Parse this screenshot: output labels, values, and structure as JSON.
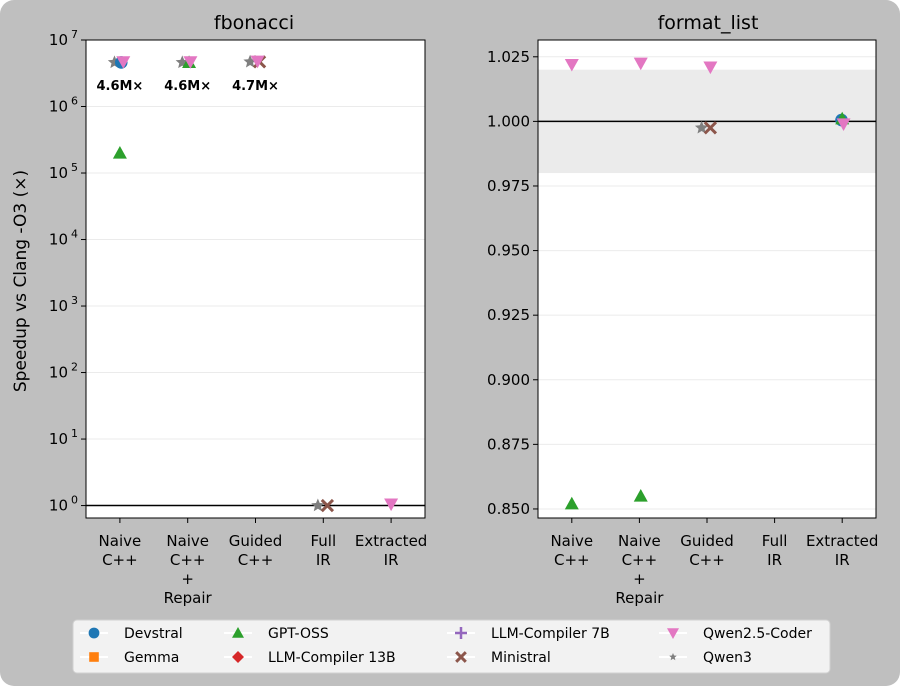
{
  "colors": {
    "figure_bg": "#bfbfbf",
    "axes_bg": "#ffffff",
    "band": "#ebebeb",
    "grid": "#ebebeb",
    "refline": "#000000"
  },
  "legend": {
    "placement": "bottom-center",
    "entries": [
      {
        "label": "Devstral",
        "marker": "circle",
        "color": "#1f77b4"
      },
      {
        "label": "GPT-OSS",
        "marker": "triangle-up",
        "color": "#2ca02c"
      },
      {
        "label": "LLM-Compiler 7B",
        "marker": "plus",
        "color": "#9467bd"
      },
      {
        "label": "Qwen2.5-Coder",
        "marker": "triangle-down",
        "color": "#e377c2"
      },
      {
        "label": "Gemma",
        "marker": "square",
        "color": "#ff7f0e"
      },
      {
        "label": "LLM-Compiler 13B",
        "marker": "diamond",
        "color": "#d62728"
      },
      {
        "label": "Ministral",
        "marker": "x",
        "color": "#8c564b"
      },
      {
        "label": "Qwen3",
        "marker": "star",
        "color": "#7f7f7f"
      }
    ]
  },
  "chart_data": [
    {
      "type": "scatter",
      "title": "fbonacci",
      "ylabel": "Speedup vs Clang -O3 (×)",
      "yscale": "log",
      "ylim": [
        0.65,
        10000000
      ],
      "yticks": [
        {
          "value": 1,
          "base": "10",
          "exp": "0"
        },
        {
          "value": 10,
          "base": "10",
          "exp": "1"
        },
        {
          "value": 100,
          "base": "10",
          "exp": "2"
        },
        {
          "value": 1000,
          "base": "10",
          "exp": "3"
        },
        {
          "value": 10000,
          "base": "10",
          "exp": "4"
        },
        {
          "value": 100000,
          "base": "10",
          "exp": "5"
        },
        {
          "value": 1000000,
          "base": "10",
          "exp": "6"
        },
        {
          "value": 10000000,
          "base": "10",
          "exp": "7"
        }
      ],
      "categories": [
        [
          "Naive",
          "C++"
        ],
        [
          "Naive",
          "C++",
          "+",
          "Repair"
        ],
        [
          "Guided",
          "C++"
        ],
        [
          "Full",
          "IR"
        ],
        [
          "Extracted",
          "IR"
        ]
      ],
      "reference_line": 1,
      "grid": true,
      "points": [
        {
          "series": "Qwen3",
          "cat": 0,
          "offset": -0.08,
          "y": 4600000
        },
        {
          "series": "Devstral",
          "cat": 0,
          "offset": 0.02,
          "y": 4600000
        },
        {
          "series": "Qwen2.5-Coder",
          "cat": 0,
          "offset": 0.05,
          "y": 4700000
        },
        {
          "series": "GPT-OSS",
          "cat": 0,
          "offset": 0.0,
          "y": 200000
        },
        {
          "series": "Qwen3",
          "cat": 1,
          "offset": -0.08,
          "y": 4600000
        },
        {
          "series": "GPT-OSS",
          "cat": 1,
          "offset": 0.02,
          "y": 4600000
        },
        {
          "series": "Qwen2.5-Coder",
          "cat": 1,
          "offset": 0.04,
          "y": 4700000
        },
        {
          "series": "Qwen3",
          "cat": 2,
          "offset": -0.08,
          "y": 4700000
        },
        {
          "series": "Ministral",
          "cat": 2,
          "offset": 0.06,
          "y": 4700000
        },
        {
          "series": "Qwen2.5-Coder",
          "cat": 2,
          "offset": 0.03,
          "y": 4800000
        },
        {
          "series": "Qwen3",
          "cat": 3,
          "offset": -0.08,
          "y": 1
        },
        {
          "series": "Ministral",
          "cat": 3,
          "offset": 0.06,
          "y": 1
        },
        {
          "series": "Qwen2.5-Coder",
          "cat": 4,
          "offset": 0.0,
          "y": 1.05
        }
      ],
      "annotations": [
        {
          "cat": 0,
          "text": "4.6M×"
        },
        {
          "cat": 1,
          "text": "4.6M×"
        },
        {
          "cat": 2,
          "text": "4.7M×"
        }
      ]
    },
    {
      "type": "scatter",
      "title": "format_list",
      "ylabel": "",
      "yscale": "linear",
      "ylim": [
        0.8465,
        1.0315
      ],
      "yticks": [
        {
          "value": 0.85,
          "label": "0.850"
        },
        {
          "value": 0.875,
          "label": "0.875"
        },
        {
          "value": 0.9,
          "label": "0.900"
        },
        {
          "value": 0.925,
          "label": "0.925"
        },
        {
          "value": 0.95,
          "label": "0.950"
        },
        {
          "value": 0.975,
          "label": "0.975"
        },
        {
          "value": 1.0,
          "label": "1.000"
        },
        {
          "value": 1.025,
          "label": "1.025"
        }
      ],
      "categories": [
        [
          "Naive",
          "C++"
        ],
        [
          "Naive",
          "C++",
          "+",
          "Repair"
        ],
        [
          "Guided",
          "C++"
        ],
        [
          "Full",
          "IR"
        ],
        [
          "Extracted",
          "IR"
        ]
      ],
      "reference_line": 1.0,
      "band": [
        0.98,
        1.02
      ],
      "grid": true,
      "points": [
        {
          "series": "Qwen2.5-Coder",
          "cat": 0,
          "offset": 0.0,
          "y": 1.022
        },
        {
          "series": "GPT-OSS",
          "cat": 0,
          "offset": 0.0,
          "y": 0.852
        },
        {
          "series": "Qwen2.5-Coder",
          "cat": 1,
          "offset": 0.02,
          "y": 1.0225
        },
        {
          "series": "GPT-OSS",
          "cat": 1,
          "offset": 0.02,
          "y": 0.855
        },
        {
          "series": "Qwen2.5-Coder",
          "cat": 2,
          "offset": 0.05,
          "y": 1.021
        },
        {
          "series": "Qwen3",
          "cat": 2,
          "offset": -0.08,
          "y": 0.9975
        },
        {
          "series": "Ministral",
          "cat": 2,
          "offset": 0.05,
          "y": 0.9975
        },
        {
          "series": "Devstral",
          "cat": 4,
          "offset": -0.01,
          "y": 1.0005
        },
        {
          "series": "GPT-OSS",
          "cat": 4,
          "offset": 0.0,
          "y": 1.001
        },
        {
          "series": "Qwen2.5-Coder",
          "cat": 4,
          "offset": 0.02,
          "y": 0.999
        }
      ]
    }
  ]
}
